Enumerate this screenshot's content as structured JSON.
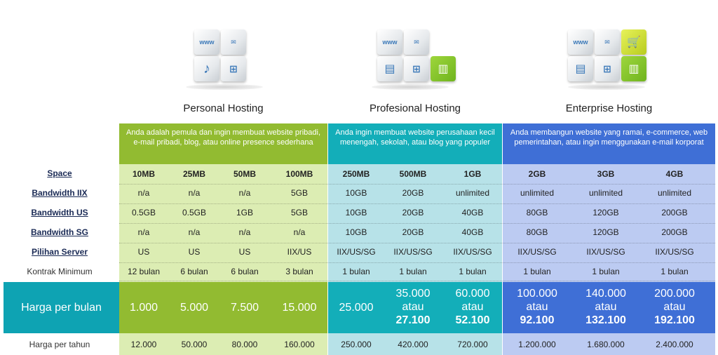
{
  "plans": [
    {
      "name": "Personal Hosting",
      "description": "Anda adalah pemula dan ingin membuat website pribadi, e-mail pribadi, blog, atau online presence sederhana",
      "accent": "#92bb31",
      "col_bg": "#dcedb3"
    },
    {
      "name": "Profesional Hosting",
      "description": "Anda ingin membuat website perusahaan kecil menengah, sekolah, atau blog yang populer",
      "accent": "#13aeb9",
      "col_bg": "#b7e2e8"
    },
    {
      "name": "Enterprise Hosting",
      "description": "Anda membangun website yang ramai, e-commerce, web pemerintahan, atau ingin menggunakan e-mail korporat",
      "accent": "#3f6fd6",
      "col_bg": "#bccbf2"
    }
  ],
  "icons": {
    "www": "www",
    "plan1": [
      "www-icon",
      "mail-icon",
      "music-icon",
      "sitemap-icon"
    ],
    "plan2": [
      "www-icon",
      "mail-icon",
      "document-icon",
      "sitemap-icon",
      "chart-icon"
    ],
    "plan3": [
      "www-icon",
      "mail-icon",
      "cart-icon",
      "document-icon",
      "sitemap-icon",
      "chart-icon"
    ]
  },
  "row_labels": [
    "Space",
    "Bandwidth IIX",
    "Bandwidth US",
    "Bandwidth SG",
    "Pilihan Server",
    "Kontrak Minimum"
  ],
  "price_label": "Harga per bulan",
  "year_label": "Harga per tahun",
  "columns": [
    {
      "space": "10MB",
      "iix": "n/a",
      "us": "0.5GB",
      "sg": "n/a",
      "server": "US",
      "kontrak": "12 bulan",
      "price": "1.000",
      "price_alt": "",
      "price_alt_val": "",
      "year": "12.000"
    },
    {
      "space": "25MB",
      "iix": "n/a",
      "us": "0.5GB",
      "sg": "n/a",
      "server": "US",
      "kontrak": "6 bulan",
      "price": "5.000",
      "price_alt": "",
      "price_alt_val": "",
      "year": "50.000"
    },
    {
      "space": "50MB",
      "iix": "n/a",
      "us": "1GB",
      "sg": "n/a",
      "server": "US",
      "kontrak": "6 bulan",
      "price": "7.500",
      "price_alt": "",
      "price_alt_val": "",
      "year": "80.000"
    },
    {
      "space": "100MB",
      "iix": "5GB",
      "us": "5GB",
      "sg": "n/a",
      "server": "IIX/US",
      "kontrak": "3 bulan",
      "price": "15.000",
      "price_alt": "",
      "price_alt_val": "",
      "year": "160.000"
    },
    {
      "space": "250MB",
      "iix": "10GB",
      "us": "10GB",
      "sg": "10GB",
      "server": "IIX/US/SG",
      "kontrak": "1 bulan",
      "price": "25.000",
      "price_alt": "",
      "price_alt_val": "",
      "year": "250.000"
    },
    {
      "space": "500MB",
      "iix": "20GB",
      "us": "20GB",
      "sg": "20GB",
      "server": "IIX/US/SG",
      "kontrak": "1 bulan",
      "price": "35.000",
      "price_alt": "atau",
      "price_alt_val": "27.100",
      "year": "420.000"
    },
    {
      "space": "1GB",
      "iix": "unlimited",
      "us": "40GB",
      "sg": "40GB",
      "server": "IIX/US/SG",
      "kontrak": "1 bulan",
      "price": "60.000",
      "price_alt": "atau",
      "price_alt_val": "52.100",
      "year": "720.000"
    },
    {
      "space": "2GB",
      "iix": "unlimited",
      "us": "80GB",
      "sg": "80GB",
      "server": "IIX/US/SG",
      "kontrak": "1 bulan",
      "price": "100.000",
      "price_alt": "atau",
      "price_alt_val": "92.100",
      "year": "1.200.000"
    },
    {
      "space": "3GB",
      "iix": "unlimited",
      "us": "120GB",
      "sg": "120GB",
      "server": "IIX/US/SG",
      "kontrak": "1 bulan",
      "price": "140.000",
      "price_alt": "atau",
      "price_alt_val": "132.100",
      "year": "1.680.000"
    },
    {
      "space": "4GB",
      "iix": "unlimited",
      "us": "200GB",
      "sg": "200GB",
      "server": "IIX/US/SG",
      "kontrak": "1 bulan",
      "price": "200.000",
      "price_alt": "atau",
      "price_alt_val": "192.100",
      "year": "2.400.000"
    }
  ],
  "colors": {
    "price_label_bg": "#0ea3b3",
    "personal_price_bg": "#92bb31",
    "pro_price_bg": "#13aeb9",
    "ent_price_bg": "#3f6fd6"
  }
}
